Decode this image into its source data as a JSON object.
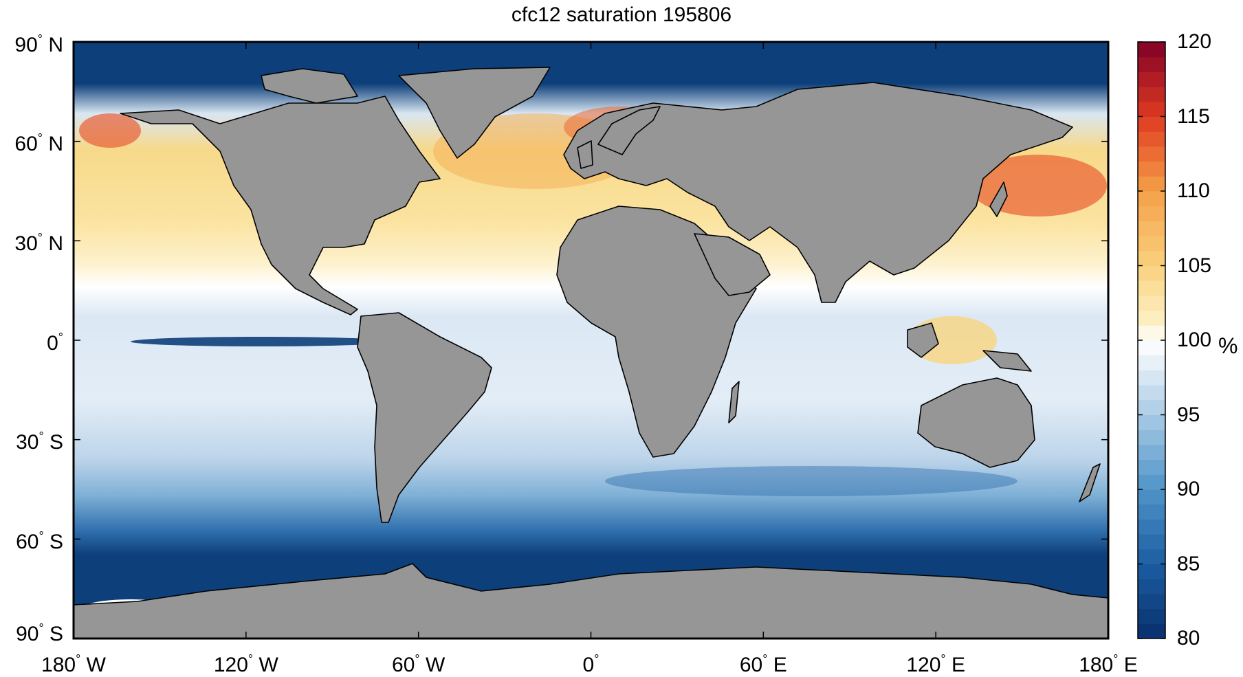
{
  "title": "cfc12 saturation 195806",
  "colorbar": {
    "unit": "%",
    "min": 80,
    "max": 120,
    "ticks": [
      "80",
      "85",
      "90",
      "95",
      "100",
      "105",
      "110",
      "115",
      "120"
    ],
    "colormap": "blue-white-red (diverging)",
    "low_color": "#08306b",
    "mid_color": "#ffffff",
    "high_color": "#800026"
  },
  "axes": {
    "lon_ticks": [
      {
        "value": -180,
        "num": "180",
        "dir": "W"
      },
      {
        "value": -120,
        "num": "120",
        "dir": "W"
      },
      {
        "value": -60,
        "num": "60",
        "dir": "W"
      },
      {
        "value": 0,
        "num": "0",
        "dir": ""
      },
      {
        "value": 60,
        "num": "60",
        "dir": "E"
      },
      {
        "value": 120,
        "num": "120",
        "dir": "E"
      },
      {
        "value": 180,
        "num": "180",
        "dir": "E"
      }
    ],
    "lat_ticks": [
      {
        "value": 90,
        "num": "90",
        "dir": "N"
      },
      {
        "value": 60,
        "num": "60",
        "dir": "N"
      },
      {
        "value": 30,
        "num": "30",
        "dir": "N"
      },
      {
        "value": 0,
        "num": "0",
        "dir": ""
      },
      {
        "value": -30,
        "num": "30",
        "dir": "S"
      },
      {
        "value": -60,
        "num": "60",
        "dir": "S"
      },
      {
        "value": -90,
        "num": "90",
        "dir": "S"
      }
    ],
    "lon_range": [
      -180,
      180
    ],
    "lat_range": [
      -90,
      90
    ]
  },
  "map": {
    "projection": "equirectangular",
    "land_color": "#969696",
    "coastline_color": "#000000"
  }
}
